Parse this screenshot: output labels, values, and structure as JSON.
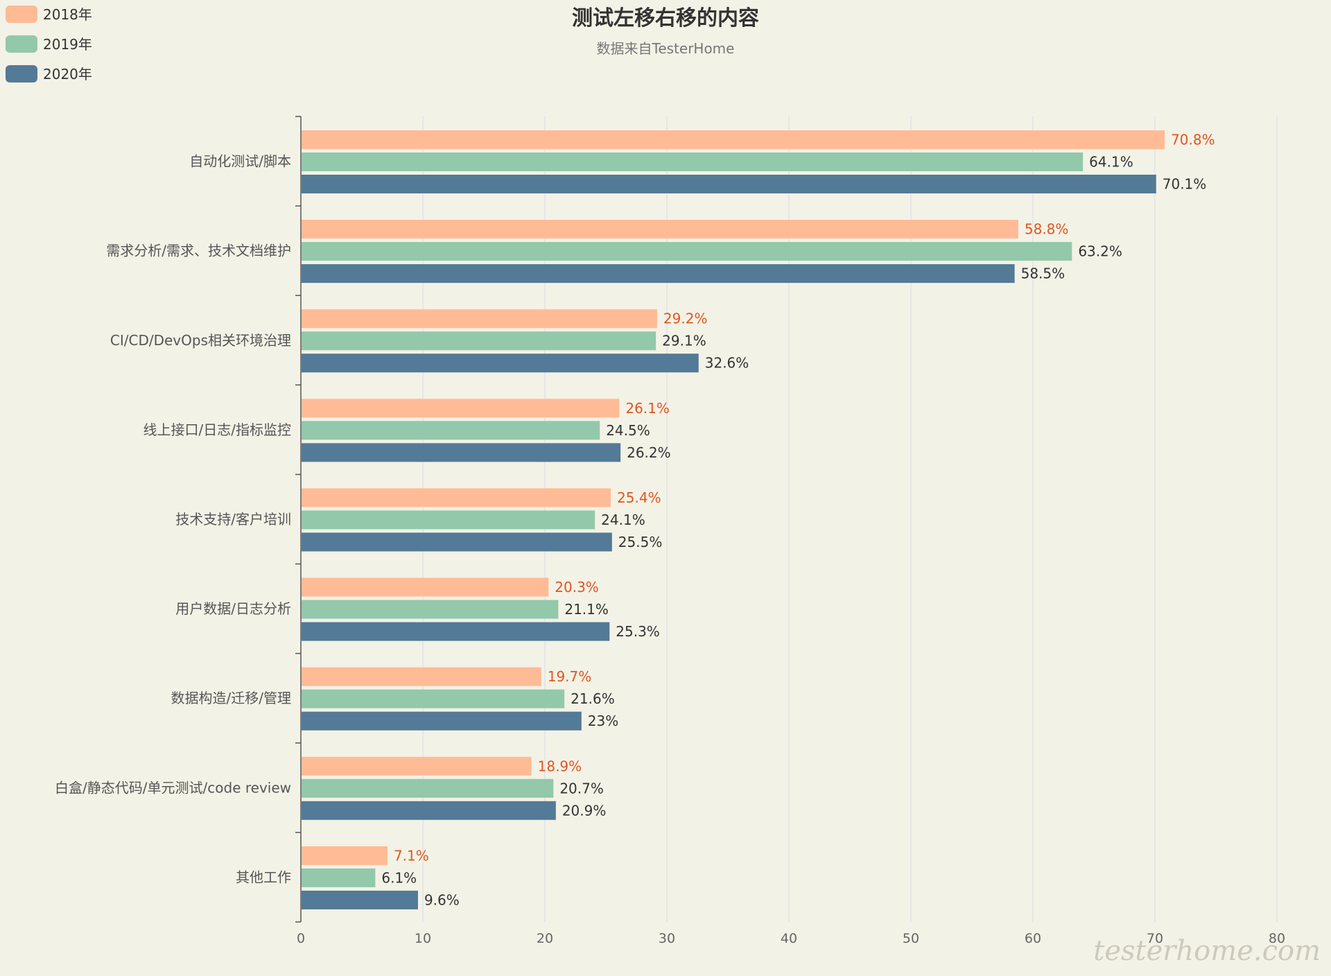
{
  "chart_data": {
    "type": "bar",
    "orientation": "horizontal",
    "title": "测试左移右移的内容",
    "subtitle": "数据来自TesterHome",
    "categories": [
      "自动化测试/脚本",
      "需求分析/需求、技术文档维护",
      "CI/CD/DevOps相关环境治理",
      "线上接口/日志/指标监控",
      "技术支持/客户培训",
      "用户数据/日志分析",
      "数据构造/迁移/管理",
      "白盒/静态代码/单元测试/code review",
      "其他工作"
    ],
    "series": [
      {
        "name": "2018年",
        "color": "#ffbb96",
        "label_color": "#e0561f",
        "values": [
          70.8,
          58.8,
          29.2,
          26.1,
          25.4,
          20.3,
          19.7,
          18.9,
          7.1
        ],
        "labels": [
          "70.8%",
          "58.8%",
          "29.2%",
          "26.1%",
          "25.4%",
          "20.3%",
          "19.7%",
          "18.9%",
          "7.1%"
        ]
      },
      {
        "name": "2019年",
        "color": "#93c8ab",
        "label_color": "#333333",
        "values": [
          64.1,
          63.2,
          29.1,
          24.5,
          24.1,
          21.1,
          21.6,
          20.7,
          6.1
        ],
        "labels": [
          "64.1%",
          "63.2%",
          "29.1%",
          "24.5%",
          "24.1%",
          "21.1%",
          "21.6%",
          "20.7%",
          "6.1%"
        ]
      },
      {
        "name": "2020年",
        "color": "#537a96",
        "label_color": "#333333",
        "values": [
          70.1,
          58.5,
          32.6,
          26.2,
          25.5,
          25.3,
          23,
          20.9,
          9.6
        ],
        "labels": [
          "70.1%",
          "58.5%",
          "32.6%",
          "26.2%",
          "25.5%",
          "25.3%",
          "23%",
          "20.9%",
          "9.6%"
        ]
      }
    ],
    "xlim": [
      0,
      80
    ],
    "xticks": [
      "0",
      "10",
      "20",
      "30",
      "40",
      "50",
      "60",
      "70",
      "80"
    ],
    "grid": true,
    "legend_position": "top-left"
  },
  "watermark": "testerhome.com"
}
